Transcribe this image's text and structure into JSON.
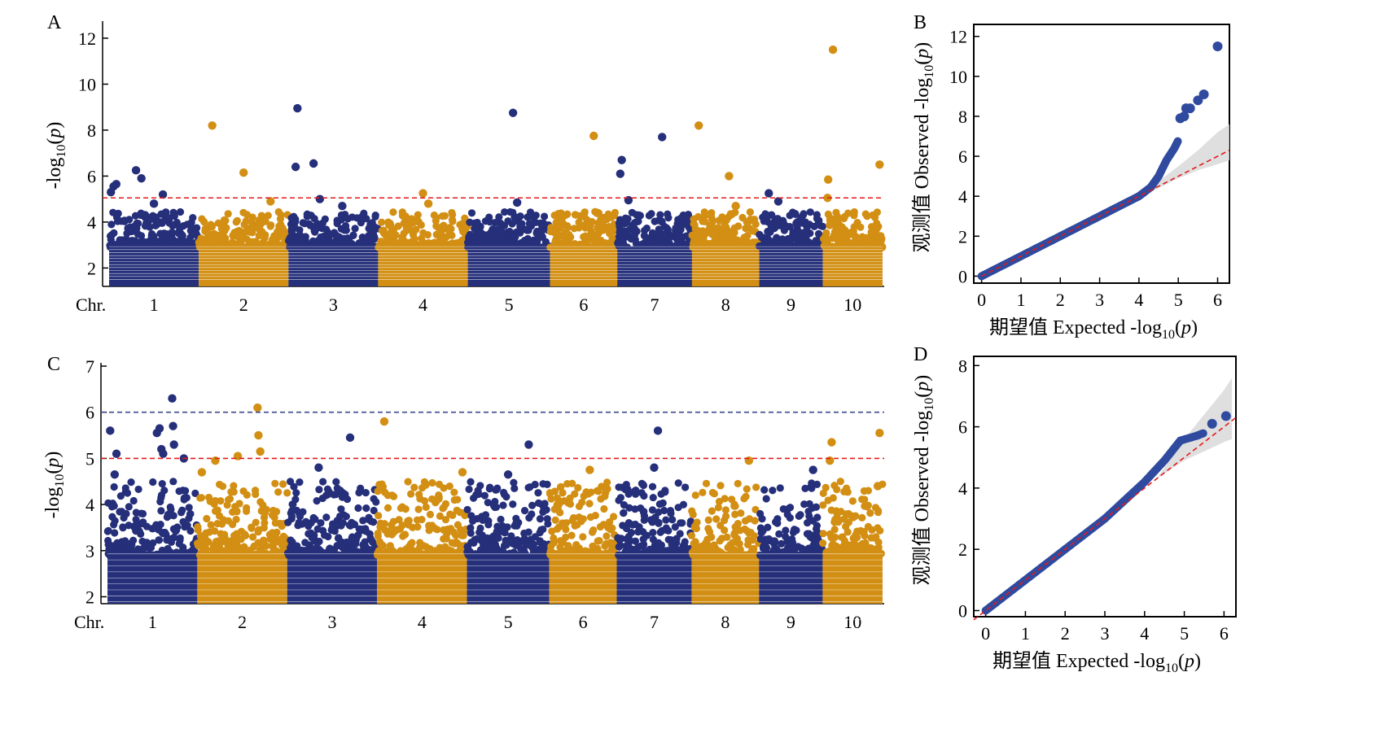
{
  "panels": [
    {
      "letter": "A",
      "type": "manhattan",
      "ylabel_prefix": "-log",
      "ylabel_sub": "10",
      "ylabel_suffix": "(p)",
      "chr_label": "Chr.",
      "ylim": [
        1.2,
        12.6
      ],
      "yticks": [
        2,
        4,
        6,
        8,
        10,
        12
      ],
      "thresholds": [
        {
          "value": 5.05,
          "color": "#e41a1c"
        }
      ],
      "chromosomes": [
        "1",
        "2",
        "3",
        "4",
        "5",
        "6",
        "7",
        "8",
        "9",
        "10"
      ],
      "chr_widths": [
        1.2,
        1.2,
        1.2,
        1.2,
        1.1,
        0.9,
        1.0,
        0.9,
        0.85,
        0.8
      ],
      "top_points": [
        {
          "chr": 1,
          "pos": 0.02,
          "y": 5.3
        },
        {
          "chr": 1,
          "pos": 0.05,
          "y": 5.55
        },
        {
          "chr": 1,
          "pos": 0.08,
          "y": 5.65
        },
        {
          "chr": 1,
          "pos": 0.3,
          "y": 6.25
        },
        {
          "chr": 1,
          "pos": 0.36,
          "y": 5.9
        },
        {
          "chr": 1,
          "pos": 0.6,
          "y": 5.2
        },
        {
          "chr": 1,
          "pos": 0.5,
          "y": 4.8
        },
        {
          "chr": 1,
          "pos": 0.4,
          "y": 4.3
        },
        {
          "chr": 2,
          "pos": 0.15,
          "y": 8.2
        },
        {
          "chr": 2,
          "pos": 0.5,
          "y": 6.15
        },
        {
          "chr": 2,
          "pos": 0.8,
          "y": 4.9
        },
        {
          "chr": 3,
          "pos": 0.08,
          "y": 6.4
        },
        {
          "chr": 3,
          "pos": 0.1,
          "y": 8.95
        },
        {
          "chr": 3,
          "pos": 0.28,
          "y": 6.55
        },
        {
          "chr": 3,
          "pos": 0.35,
          "y": 5.0
        },
        {
          "chr": 3,
          "pos": 0.6,
          "y": 4.7
        },
        {
          "chr": 4,
          "pos": 0.5,
          "y": 5.25
        },
        {
          "chr": 4,
          "pos": 0.56,
          "y": 4.8
        },
        {
          "chr": 5,
          "pos": 0.55,
          "y": 8.75
        },
        {
          "chr": 5,
          "pos": 0.6,
          "y": 4.85
        },
        {
          "chr": 6,
          "pos": 0.65,
          "y": 7.75
        },
        {
          "chr": 6,
          "pos": 0.7,
          "y": 4.4
        },
        {
          "chr": 7,
          "pos": 0.04,
          "y": 6.1
        },
        {
          "chr": 7,
          "pos": 0.06,
          "y": 6.7
        },
        {
          "chr": 7,
          "pos": 0.15,
          "y": 4.95
        },
        {
          "chr": 7,
          "pos": 0.6,
          "y": 7.7
        },
        {
          "chr": 8,
          "pos": 0.1,
          "y": 8.2
        },
        {
          "chr": 8,
          "pos": 0.55,
          "y": 6.0
        },
        {
          "chr": 8,
          "pos": 0.65,
          "y": 4.7
        },
        {
          "chr": 9,
          "pos": 0.15,
          "y": 5.25
        },
        {
          "chr": 9,
          "pos": 0.3,
          "y": 4.9
        },
        {
          "chr": 10,
          "pos": 0.08,
          "y": 5.05
        },
        {
          "chr": 10,
          "pos": 0.09,
          "y": 5.85
        },
        {
          "chr": 10,
          "pos": 0.17,
          "y": 11.5
        },
        {
          "chr": 10,
          "pos": 0.95,
          "y": 6.5
        }
      ]
    },
    {
      "letter": "B",
      "type": "qq",
      "xlabel_cn": "期望值",
      "xlabel_prefix": "Expected -log",
      "xlabel_sub": "10",
      "xlabel_suffix": "(p)",
      "ylabel_cn": "观测值",
      "ylabel_prefix": "Observed -log",
      "ylabel_sub": "10",
      "ylabel_suffix": "(p)",
      "xlim": [
        -0.2,
        6.3
      ],
      "ylim": [
        -0.35,
        12.6
      ],
      "xticks": [
        0,
        1,
        2,
        3,
        4,
        5,
        6
      ],
      "yticks": [
        0,
        2,
        4,
        6,
        8,
        10,
        12
      ],
      "curve": [
        [
          0,
          0
        ],
        [
          1,
          1
        ],
        [
          2,
          2
        ],
        [
          3,
          3
        ],
        [
          4,
          4
        ],
        [
          4.3,
          4.45
        ],
        [
          4.5,
          5.0
        ],
        [
          4.7,
          5.8
        ],
        [
          4.9,
          6.4
        ],
        [
          5.0,
          6.8
        ]
      ],
      "outliers": [
        [
          5.05,
          7.9
        ],
        [
          5.15,
          8.0
        ],
        [
          5.2,
          8.4
        ],
        [
          5.3,
          8.4
        ],
        [
          5.5,
          8.8
        ],
        [
          5.65,
          9.1
        ],
        [
          6.0,
          11.5
        ]
      ],
      "expected_line": [
        [
          0,
          0
        ],
        [
          6.3,
          6.3
        ]
      ],
      "ci_band": [
        [
          4.3,
          4.45,
          4.2
        ],
        [
          5.0,
          5.5,
          4.9
        ],
        [
          5.5,
          6.3,
          5.3
        ],
        [
          6.0,
          7.2,
          5.6
        ],
        [
          6.3,
          7.6,
          5.8
        ]
      ]
    },
    {
      "letter": "C",
      "type": "manhattan",
      "ylabel_prefix": "-log",
      "ylabel_sub": "10",
      "ylabel_suffix": "(p)",
      "chr_label": "Chr.",
      "ylim": [
        1.85,
        7.0
      ],
      "yticks": [
        2,
        3,
        4,
        5,
        6,
        7
      ],
      "thresholds": [
        {
          "value": 6.0,
          "color": "#3b4a8c"
        },
        {
          "value": 5.0,
          "color": "#e41a1c"
        }
      ],
      "chromosomes": [
        "1",
        "2",
        "3",
        "4",
        "5",
        "6",
        "7",
        "8",
        "9",
        "10"
      ],
      "chr_widths": [
        1.2,
        1.2,
        1.2,
        1.2,
        1.1,
        0.9,
        1.0,
        0.9,
        0.85,
        0.8
      ],
      "top_points": [
        {
          "chr": 1,
          "pos": 0.03,
          "y": 5.6
        },
        {
          "chr": 1,
          "pos": 0.1,
          "y": 5.1
        },
        {
          "chr": 1,
          "pos": 0.08,
          "y": 4.65
        },
        {
          "chr": 1,
          "pos": 0.55,
          "y": 5.55
        },
        {
          "chr": 1,
          "pos": 0.58,
          "y": 5.65
        },
        {
          "chr": 1,
          "pos": 0.6,
          "y": 5.2
        },
        {
          "chr": 1,
          "pos": 0.62,
          "y": 5.1
        },
        {
          "chr": 1,
          "pos": 0.72,
          "y": 6.3
        },
        {
          "chr": 1,
          "pos": 0.73,
          "y": 5.7
        },
        {
          "chr": 1,
          "pos": 0.74,
          "y": 5.3
        },
        {
          "chr": 1,
          "pos": 0.85,
          "y": 5.0
        },
        {
          "chr": 2,
          "pos": 0.2,
          "y": 4.95
        },
        {
          "chr": 2,
          "pos": 0.45,
          "y": 5.05
        },
        {
          "chr": 2,
          "pos": 0.67,
          "y": 6.1
        },
        {
          "chr": 2,
          "pos": 0.68,
          "y": 5.5
        },
        {
          "chr": 2,
          "pos": 0.7,
          "y": 5.15
        },
        {
          "chr": 2,
          "pos": 0.05,
          "y": 4.7
        },
        {
          "chr": 3,
          "pos": 0.7,
          "y": 5.45
        },
        {
          "chr": 3,
          "pos": 0.35,
          "y": 4.8
        },
        {
          "chr": 4,
          "pos": 0.08,
          "y": 5.8
        },
        {
          "chr": 4,
          "pos": 0.95,
          "y": 4.7
        },
        {
          "chr": 5,
          "pos": 0.75,
          "y": 5.3
        },
        {
          "chr": 5,
          "pos": 0.5,
          "y": 4.65
        },
        {
          "chr": 6,
          "pos": 0.6,
          "y": 4.75
        },
        {
          "chr": 7,
          "pos": 0.55,
          "y": 5.6
        },
        {
          "chr": 7,
          "pos": 0.5,
          "y": 4.8
        },
        {
          "chr": 8,
          "pos": 0.85,
          "y": 4.95
        },
        {
          "chr": 9,
          "pos": 0.85,
          "y": 4.75
        },
        {
          "chr": 10,
          "pos": 0.15,
          "y": 5.35
        },
        {
          "chr": 10,
          "pos": 0.12,
          "y": 4.95
        },
        {
          "chr": 10,
          "pos": 0.95,
          "y": 5.55
        },
        {
          "chr": 10,
          "pos": 0.92,
          "y": 4.4
        }
      ]
    },
    {
      "letter": "D",
      "type": "qq",
      "xlabel_cn": "期望值",
      "xlabel_prefix": "Expected -log",
      "xlabel_sub": "10",
      "xlabel_suffix": "(p)",
      "ylabel_cn": "观测值",
      "ylabel_prefix": "Observed -log",
      "ylabel_sub": "10",
      "ylabel_suffix": "(p)",
      "xlim": [
        -0.3,
        6.3
      ],
      "ylim": [
        -0.2,
        8.3
      ],
      "xticks": [
        0,
        1,
        2,
        3,
        4,
        5,
        6
      ],
      "yticks": [
        0,
        2,
        4,
        6,
        8
      ],
      "curve": [
        [
          0,
          0
        ],
        [
          1,
          1
        ],
        [
          2,
          2
        ],
        [
          3,
          3
        ],
        [
          4,
          4.2
        ],
        [
          4.5,
          4.9
        ],
        [
          4.9,
          5.55
        ],
        [
          5.3,
          5.7
        ],
        [
          5.5,
          5.8
        ]
      ],
      "outliers": [
        [
          5.7,
          6.1
        ],
        [
          6.05,
          6.35
        ]
      ],
      "expected_line": [
        [
          -0.3,
          -0.3
        ],
        [
          6.3,
          6.3
        ]
      ],
      "ci_band": [
        [
          4.3,
          4.3,
          4.3
        ],
        [
          5.0,
          5.6,
          4.9
        ],
        [
          5.5,
          6.4,
          5.2
        ],
        [
          6.0,
          7.2,
          5.5
        ],
        [
          6.2,
          7.6,
          5.6
        ]
      ]
    }
  ],
  "colors": {
    "navy": "#252f7a",
    "gold": "#d28f13",
    "qq_point": "#2f4a9e",
    "band": "#d9d9d9",
    "expected": "#e41a1c"
  }
}
